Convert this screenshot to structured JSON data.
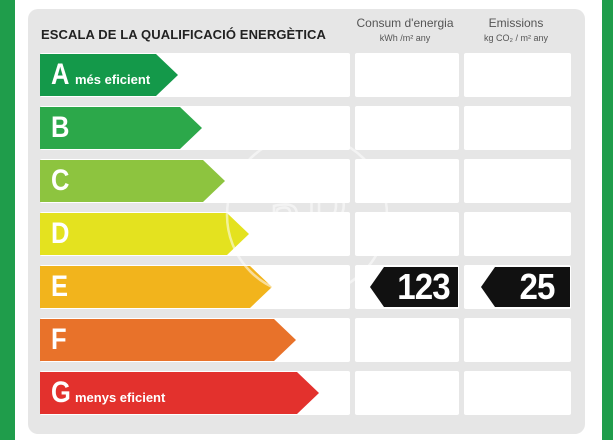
{
  "header": {
    "title": "ESCALA DE LA QUALIFICACIÓ ENERGÈTICA",
    "consumption_label": "Consum d'energia",
    "consumption_unit": "kWh /m² any",
    "emissions_label": "Emissions",
    "emissions_unit": "kg CO₂ / m² any"
  },
  "classes": [
    {
      "letter": "A",
      "sub": "més eficient",
      "color": "#14994a"
    },
    {
      "letter": "B",
      "sub": "",
      "color": "#2ca84a"
    },
    {
      "letter": "C",
      "sub": "",
      "color": "#8dc43f"
    },
    {
      "letter": "D",
      "sub": "",
      "color": "#e4e21f"
    },
    {
      "letter": "E",
      "sub": "",
      "color": "#f2b41c"
    },
    {
      "letter": "F",
      "sub": "",
      "color": "#e8722a"
    },
    {
      "letter": "G",
      "sub": "menys eficient",
      "color": "#e3312d"
    }
  ],
  "rating": {
    "class": "E",
    "consumption_value": "123",
    "emissions_value": "25"
  },
  "watermark_text": "aP"
}
